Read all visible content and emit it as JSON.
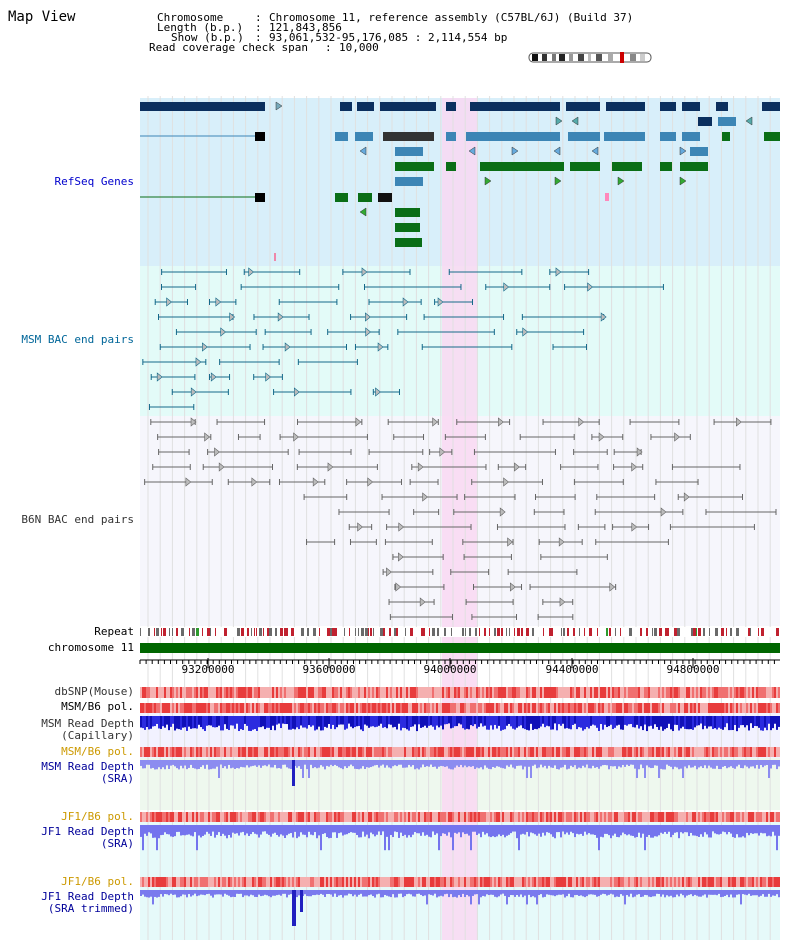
{
  "window": {
    "title": "Map View"
  },
  "info": {
    "chromosome_label": "Chromosome",
    "chromosome_value": "Chromosome 11, reference assembly (C57BL/6J) (Build 37)",
    "length_label": "Length (b.p.)",
    "length_value": "121,843,856",
    "show_label": "Show (b.p.)",
    "show_value": "93,061,532-95,176,085 : 2,114,554 bp",
    "coverage_label": "Read coverage check span",
    "coverage_value": "10,000"
  },
  "tracks": {
    "refseq": "RefSeq Genes",
    "msm_bac": "MSM BAC end pairs",
    "b6n_bac": "B6N BAC end pairs",
    "repeat": "Repeat",
    "chromosome": "chromosome 11",
    "dbsnp": "dbSNP(Mouse)",
    "msm_b6_pol_1": "MSM/B6 pol.",
    "msm_depth_cap_1": "MSM Read Depth",
    "msm_depth_cap_2": "(Capillary)",
    "msm_b6_pol_2": "MSM/B6 pol.",
    "msm_depth_sra_1": "MSM Read Depth",
    "msm_depth_sra_2": "(SRA)",
    "jf1_b6_pol_1": "JF1/B6 pol.",
    "jf1_depth_sra_1": "JF1 Read Depth",
    "jf1_depth_sra_2": "(SRA)",
    "jf1_b6_pol_2": "JF1/B6 pol.",
    "jf1_depth_trim_1": "JF1 Read Depth",
    "jf1_depth_trim_2": "(SRA trimmed)"
  },
  "axis": {
    "ticks": [
      "93200000",
      "93600000",
      "94000000",
      "94400000",
      "94800000"
    ]
  },
  "colors": {
    "refseq_label": "#0000cc",
    "msm_label": "#006699",
    "b6n_label": "#333333",
    "pol_label": "#cc9900",
    "depth_label": "#000099",
    "highlight": "#f9d8f2",
    "refseq_bg": "#d8effa",
    "msm_bg": "#e3fbf8",
    "b6n_bg": "#f6f6fc",
    "chromosome_bar": "#006600"
  }
}
